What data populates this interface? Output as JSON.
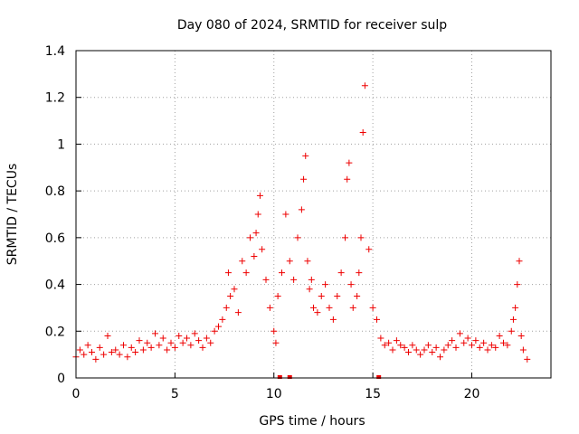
{
  "chart_data": {
    "type": "scatter",
    "title": "Day 080 of 2024, SRMTID for receiver sulp",
    "xlabel": "GPS time / hours",
    "ylabel": "SRMTID / TECUs",
    "xlim": [
      0,
      24
    ],
    "ylim": [
      0,
      1.4
    ],
    "x_ticks": [
      0,
      5,
      10,
      15,
      20
    ],
    "y_ticks": [
      0,
      0.2,
      0.4,
      0.6,
      0.8,
      1.0,
      1.2,
      1.4
    ],
    "x_tick_labels": [
      "0",
      "5",
      "10",
      "15",
      "20"
    ],
    "y_tick_labels": [
      "0",
      "0.2",
      "0.4",
      "0.6",
      "0.8",
      "1",
      "1.2",
      "1.4"
    ],
    "grid": true,
    "marker": "+",
    "marker_color": "#ee0000",
    "series": [
      {
        "name": "SRMTID",
        "x": [
          0.0,
          0.2,
          0.4,
          0.6,
          0.8,
          1.0,
          1.2,
          1.4,
          1.6,
          1.8,
          2.0,
          2.2,
          2.4,
          2.6,
          2.8,
          3.0,
          3.2,
          3.4,
          3.6,
          3.8,
          4.0,
          4.2,
          4.4,
          4.6,
          4.8,
          5.0,
          5.2,
          5.4,
          5.6,
          5.8,
          6.0,
          6.2,
          6.4,
          6.6,
          6.8,
          7.0,
          7.2,
          7.4,
          7.6,
          7.7,
          7.8,
          8.0,
          8.2,
          8.4,
          8.6,
          8.8,
          9.0,
          9.1,
          9.2,
          9.3,
          9.4,
          9.6,
          9.8,
          10.0,
          10.1,
          10.2,
          10.4,
          10.6,
          10.8,
          11.0,
          11.2,
          11.4,
          11.5,
          11.6,
          11.7,
          11.8,
          11.9,
          12.0,
          12.2,
          12.4,
          12.6,
          12.8,
          13.0,
          13.2,
          13.4,
          13.6,
          13.7,
          13.8,
          13.9,
          14.0,
          14.2,
          14.3,
          14.4,
          14.5,
          14.6,
          14.8,
          15.0,
          15.2,
          15.4,
          15.6,
          15.8,
          16.0,
          16.2,
          16.4,
          16.6,
          16.8,
          17.0,
          17.2,
          17.4,
          17.6,
          17.8,
          18.0,
          18.2,
          18.4,
          18.6,
          18.8,
          19.0,
          19.2,
          19.4,
          19.6,
          19.8,
          20.0,
          20.2,
          20.4,
          20.6,
          20.8,
          21.0,
          21.2,
          21.4,
          21.6,
          21.8,
          22.0,
          22.1,
          22.2,
          22.3,
          22.4,
          22.5,
          22.6,
          22.8
        ],
        "values": [
          0.09,
          0.12,
          0.1,
          0.14,
          0.11,
          0.08,
          0.13,
          0.1,
          0.18,
          0.11,
          0.12,
          0.1,
          0.14,
          0.09,
          0.13,
          0.11,
          0.16,
          0.12,
          0.15,
          0.13,
          0.19,
          0.14,
          0.17,
          0.12,
          0.15,
          0.13,
          0.18,
          0.15,
          0.17,
          0.14,
          0.19,
          0.16,
          0.13,
          0.17,
          0.15,
          0.2,
          0.22,
          0.25,
          0.3,
          0.45,
          0.35,
          0.38,
          0.28,
          0.5,
          0.45,
          0.6,
          0.52,
          0.62,
          0.7,
          0.78,
          0.55,
          0.42,
          0.3,
          0.2,
          0.15,
          0.35,
          0.45,
          0.7,
          0.5,
          0.42,
          0.6,
          0.72,
          0.85,
          0.95,
          0.5,
          0.38,
          0.42,
          0.3,
          0.28,
          0.35,
          0.4,
          0.3,
          0.25,
          0.35,
          0.45,
          0.6,
          0.85,
          0.92,
          0.4,
          0.3,
          0.35,
          0.45,
          0.6,
          1.05,
          1.25,
          0.55,
          0.3,
          0.25,
          0.17,
          0.14,
          0.15,
          0.12,
          0.16,
          0.14,
          0.13,
          0.11,
          0.14,
          0.12,
          0.1,
          0.12,
          0.14,
          0.11,
          0.13,
          0.09,
          0.12,
          0.14,
          0.16,
          0.13,
          0.19,
          0.15,
          0.17,
          0.14,
          0.16,
          0.13,
          0.15,
          0.12,
          0.14,
          0.13,
          0.18,
          0.15,
          0.14,
          0.2,
          0.25,
          0.3,
          0.4,
          0.5,
          0.18,
          0.12,
          0.08
        ]
      }
    ],
    "gap_markers_x": [
      10.3,
      10.8,
      15.3
    ]
  }
}
